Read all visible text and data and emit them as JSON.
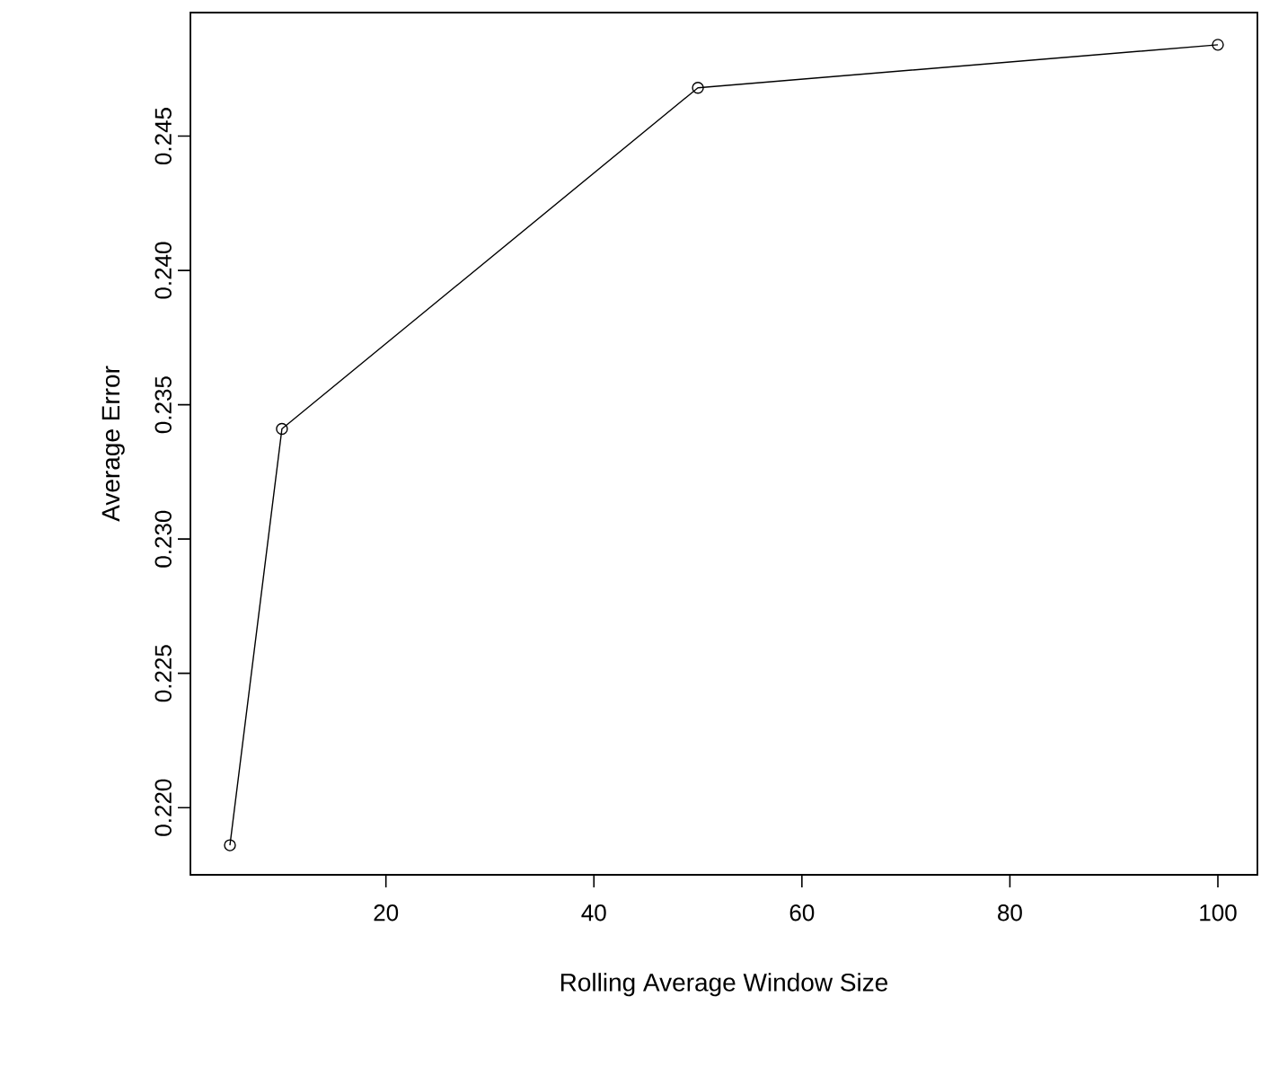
{
  "chart_data": {
    "type": "line",
    "xlabel": "Rolling Average Window Size",
    "ylabel": "Average Error",
    "x": [
      5,
      10,
      50,
      100
    ],
    "series": [
      {
        "color": "#000000",
        "values": [
          0.2186,
          0.2341,
          0.2468,
          0.2484
        ]
      }
    ],
    "xlim": [
      1.2,
      103.8
    ],
    "ylim": [
      0.2175,
      0.2496
    ],
    "xticks": [
      20,
      40,
      60,
      80,
      100
    ],
    "yticks": [
      {
        "value": 0.22,
        "label": "0.220"
      },
      {
        "value": 0.225,
        "label": "0.225"
      },
      {
        "value": 0.23,
        "label": "0.230"
      },
      {
        "value": 0.235,
        "label": "0.235"
      },
      {
        "value": 0.24,
        "label": "0.240"
      },
      {
        "value": 0.245,
        "label": "0.245"
      }
    ],
    "grid": false,
    "marker": "circle",
    "line_style": "solid"
  }
}
